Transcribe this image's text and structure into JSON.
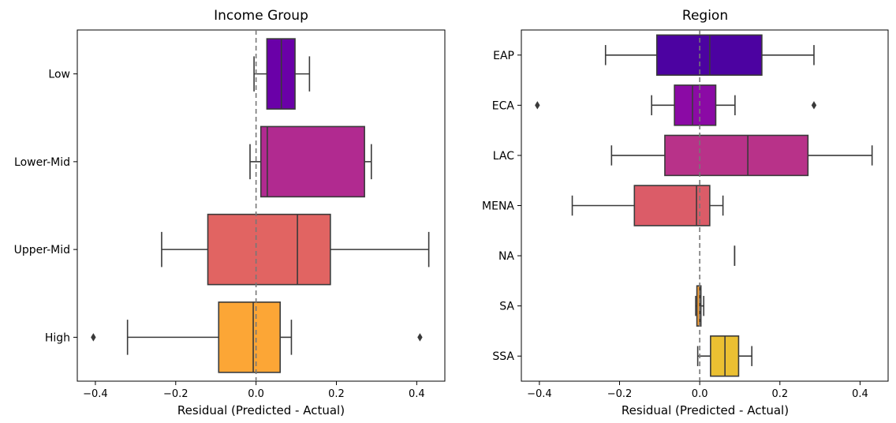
{
  "chart_data": [
    {
      "type": "box",
      "orientation": "horizontal",
      "title": "Income Group",
      "xlabel": "Residual (Predicted - Actual)",
      "ylabel": "",
      "xlim": [
        -0.445,
        0.47
      ],
      "xticks": [
        -0.4,
        -0.2,
        0.0,
        0.2,
        0.4
      ],
      "xtick_labels": [
        "−0.4",
        "−0.2",
        "0.0",
        "0.2",
        "0.4"
      ],
      "reference_line": {
        "x": 0.0,
        "style": "dashed",
        "color": "#777777"
      },
      "categories": [
        "Low",
        "Lower-Mid",
        "Upper-Mid",
        "High"
      ],
      "boxes": [
        {
          "category": "Low",
          "whisker_low": -0.005,
          "q1": 0.027,
          "median": 0.063,
          "q3": 0.097,
          "whisker_high": 0.133,
          "outliers": [],
          "color": "#6a00a8"
        },
        {
          "category": "Lower-Mid",
          "whisker_low": -0.015,
          "q1": 0.012,
          "median": 0.028,
          "q3": 0.27,
          "whisker_high": 0.287,
          "outliers": [],
          "color": "#b12a90"
        },
        {
          "category": "Upper-Mid",
          "whisker_low": -0.235,
          "q1": -0.12,
          "median": 0.103,
          "q3": 0.185,
          "whisker_high": 0.43,
          "outliers": [],
          "color": "#e16462"
        },
        {
          "category": "High",
          "whisker_low": -0.32,
          "q1": -0.093,
          "median": -0.007,
          "q3": 0.06,
          "whisker_high": 0.088,
          "outliers": [
            -0.405,
            0.408
          ],
          "color": "#fca636"
        }
      ]
    },
    {
      "type": "box",
      "orientation": "horizontal",
      "title": "Region",
      "xlabel": "Residual (Predicted - Actual)",
      "ylabel": "",
      "xlim": [
        -0.445,
        0.47
      ],
      "xticks": [
        -0.4,
        -0.2,
        0.0,
        0.2,
        0.4
      ],
      "xtick_labels": [
        "−0.4",
        "−0.2",
        "0.0",
        "0.2",
        "0.4"
      ],
      "reference_line": {
        "x": 0.0,
        "style": "dashed",
        "color": "#777777"
      },
      "categories": [
        "EAP",
        "ECA",
        "LAC",
        "MENA",
        "NA",
        "SA",
        "SSA"
      ],
      "boxes": [
        {
          "category": "EAP",
          "whisker_low": -0.235,
          "q1": -0.107,
          "median": 0.025,
          "q3": 0.155,
          "whisker_high": 0.285,
          "outliers": [],
          "color": "#4c02a1"
        },
        {
          "category": "ECA",
          "whisker_low": -0.12,
          "q1": -0.063,
          "median": -0.018,
          "q3": 0.04,
          "whisker_high": 0.088,
          "outliers": [
            -0.405,
            0.285
          ],
          "color": "#8b0aa5"
        },
        {
          "category": "LAC",
          "whisker_low": -0.22,
          "q1": -0.087,
          "median": 0.12,
          "q3": 0.27,
          "whisker_high": 0.43,
          "outliers": [],
          "color": "#b83289"
        },
        {
          "category": "MENA",
          "whisker_low": -0.318,
          "q1": -0.163,
          "median": -0.008,
          "q3": 0.025,
          "whisker_high": 0.058,
          "outliers": [],
          "color": "#db5c68"
        },
        {
          "category": "NA",
          "whisker_low": 0.087,
          "q1": 0.087,
          "median": 0.087,
          "q3": 0.087,
          "whisker_high": 0.087,
          "outliers": [],
          "color": "#f48849"
        },
        {
          "category": "SA",
          "whisker_low": -0.01,
          "q1": -0.007,
          "median": 0.0,
          "q3": 0.003,
          "whisker_high": 0.01,
          "outliers": [],
          "color": "#fba238"
        },
        {
          "category": "SSA",
          "whisker_low": -0.005,
          "q1": 0.027,
          "median": 0.063,
          "q3": 0.097,
          "whisker_high": 0.13,
          "outliers": [],
          "color": "#ebc032"
        }
      ]
    }
  ]
}
